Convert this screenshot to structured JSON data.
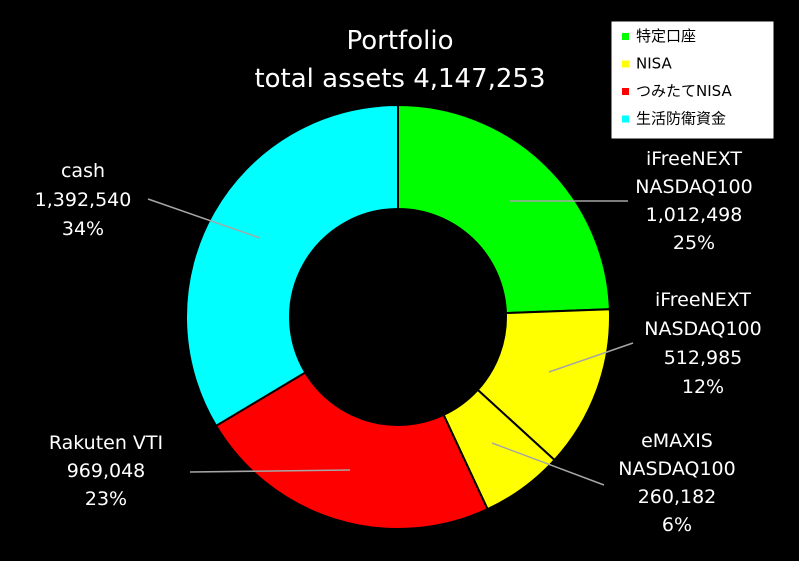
{
  "chart_data": {
    "type": "pie",
    "donut": true,
    "title": "Portfolio",
    "subtitle": "total assets 4,147,253",
    "slices": [
      {
        "lines": [
          "iFreeNEXT",
          "NASDAQ100",
          "1,012,498",
          "25%"
        ],
        "value": 1012498,
        "percent": 25,
        "color": "#00FF00"
      },
      {
        "lines": [
          "iFreeNEXT",
          "NASDAQ100",
          "512,985",
          "12%"
        ],
        "value": 512985,
        "percent": 12,
        "color": "#FFFF00"
      },
      {
        "lines": [
          "eMAXIS",
          "NASDAQ100",
          "260,182",
          "6%"
        ],
        "value": 260182,
        "percent": 6,
        "color": "#FFFF00"
      },
      {
        "lines": [
          "Rakuten VTI",
          "969,048",
          "23%"
        ],
        "value": 969048,
        "percent": 23,
        "color": "#FF0000"
      },
      {
        "lines": [
          "cash",
          "1,392,540",
          "34%"
        ],
        "value": 1392540,
        "percent": 34,
        "color": "#00FFFF"
      }
    ],
    "legend": {
      "placement": "top-right",
      "entries": [
        {
          "label": "特定口座",
          "color": "#00FF00"
        },
        {
          "label": "NISA",
          "color": "#FFFF00"
        },
        {
          "label": "つみたてNISA",
          "color": "#FF0000"
        },
        {
          "label": "生活防衛資金",
          "color": "#00FFFF"
        }
      ]
    }
  }
}
